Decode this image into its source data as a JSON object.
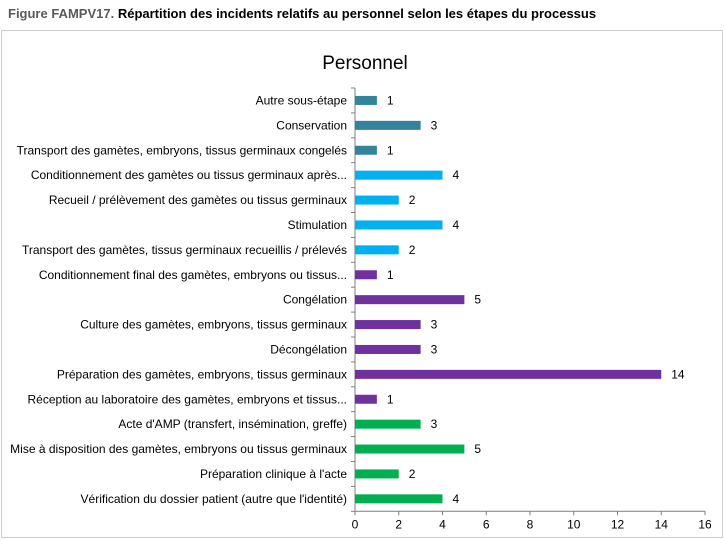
{
  "figure": {
    "number": "Figure FAMPV17.",
    "caption": "Répartition des incidents relatifs au personnel selon les étapes du processus"
  },
  "chart_data": {
    "type": "bar",
    "orientation": "horizontal",
    "title": "Personnel",
    "xlim": [
      0,
      16
    ],
    "xticks": [
      0,
      2,
      4,
      6,
      8,
      10,
      12,
      14,
      16
    ],
    "grid": false,
    "legend": "none",
    "categories": [
      "Autre sous-étape",
      "Conservation",
      "Transport des gamètes, embryons, tissus germinaux congelés",
      "Conditionnement des gamètes ou tissus germinaux après...",
      "Recueil / prélèvement des gamètes ou tissus germinaux",
      "Stimulation",
      "Transport des gamètes, tissus germinaux recueillis / prélevés",
      "Conditionnement final des gamètes, embryons ou tissus...",
      "Congélation",
      "Culture des gamètes, embryons, tissus germinaux",
      "Décongélation",
      "Préparation des gamètes, embryons, tissus germinaux",
      "Réception au laboratoire des gamètes, embryons et tissus...",
      "Acte d'AMP (transfert, insémination, greffe)",
      "Mise à disposition des gamètes, embryons ou tissus germinaux",
      "Préparation clinique à l'acte",
      "Vérification du dossier patient (autre que l'identité)"
    ],
    "values": [
      1,
      3,
      1,
      4,
      2,
      4,
      2,
      1,
      5,
      3,
      3,
      14,
      1,
      3,
      5,
      2,
      4
    ],
    "colors": [
      "#31849B",
      "#31849B",
      "#31849B",
      "#00B0F0",
      "#00B0F0",
      "#00B0F0",
      "#00B0F0",
      "#7030A0",
      "#7030A0",
      "#7030A0",
      "#7030A0",
      "#7030A0",
      "#7030A0",
      "#00B050",
      "#00B050",
      "#00B050",
      "#00B050"
    ]
  }
}
